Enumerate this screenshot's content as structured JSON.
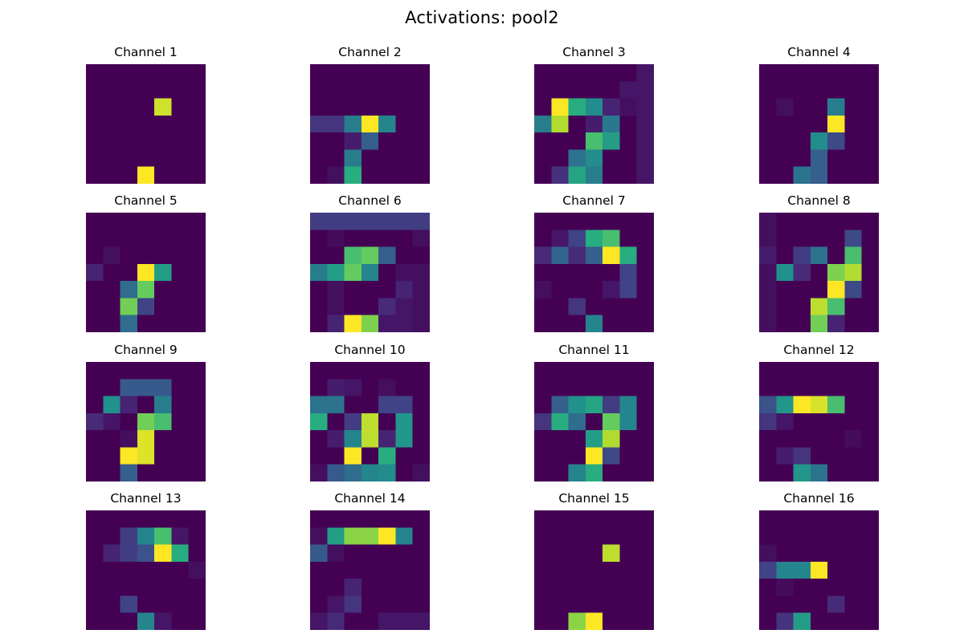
{
  "chart_data": {
    "type": "heatmap",
    "title": "Activations: pool2",
    "colormap": "viridis",
    "value_range": [
      0,
      1
    ],
    "axes_visible": false,
    "grid": false,
    "colormap_stops": [
      "#440154",
      "#472d7b",
      "#3b528b",
      "#2c728e",
      "#21918c",
      "#28ae80",
      "#5ec962",
      "#addc30",
      "#fde725"
    ],
    "panels": [
      {
        "title": "Channel 1",
        "values": [
          [
            0,
            0,
            0,
            0,
            0,
            0,
            0
          ],
          [
            0,
            0,
            0,
            0,
            0,
            0,
            0
          ],
          [
            0,
            0,
            0,
            0,
            0.93,
            0,
            0
          ],
          [
            0,
            0,
            0,
            0,
            0,
            0,
            0
          ],
          [
            0,
            0,
            0,
            0,
            0,
            0,
            0
          ],
          [
            0,
            0,
            0,
            0,
            0,
            0,
            0
          ],
          [
            0,
            0,
            0,
            1,
            0,
            0,
            0
          ]
        ]
      },
      {
        "title": "Channel 2",
        "values": [
          [
            0,
            0,
            0,
            0,
            0,
            0,
            0
          ],
          [
            0,
            0,
            0,
            0,
            0,
            0,
            0
          ],
          [
            0,
            0,
            0,
            0,
            0,
            0,
            0
          ],
          [
            0.15,
            0.15,
            0.42,
            1,
            0.45,
            0,
            0
          ],
          [
            0,
            0,
            0.08,
            0.3,
            0,
            0,
            0
          ],
          [
            0,
            0,
            0.42,
            0,
            0,
            0,
            0
          ],
          [
            0,
            0.04,
            0.62,
            0,
            0,
            0,
            0
          ]
        ]
      },
      {
        "title": "Channel 3",
        "values": [
          [
            0,
            0,
            0,
            0,
            0,
            0,
            0.06
          ],
          [
            0,
            0,
            0,
            0,
            0,
            0.06,
            0.06
          ],
          [
            0,
            1,
            0.62,
            0.48,
            0.1,
            0.04,
            0.06
          ],
          [
            0.42,
            0.88,
            0,
            0.08,
            0.4,
            0,
            0.06
          ],
          [
            0,
            0,
            0,
            0.7,
            0.55,
            0,
            0.06
          ],
          [
            0,
            0,
            0.38,
            0.48,
            0,
            0,
            0.06
          ],
          [
            0,
            0.14,
            0.58,
            0.42,
            0,
            0,
            0.06
          ]
        ]
      },
      {
        "title": "Channel 4",
        "values": [
          [
            0,
            0,
            0,
            0,
            0,
            0,
            0
          ],
          [
            0,
            0,
            0,
            0,
            0,
            0,
            0
          ],
          [
            0,
            0.04,
            0,
            0,
            0.42,
            0,
            0
          ],
          [
            0,
            0,
            0,
            0,
            1,
            0,
            0
          ],
          [
            0,
            0,
            0,
            0.48,
            0.22,
            0,
            0
          ],
          [
            0,
            0,
            0,
            0.3,
            0,
            0,
            0
          ],
          [
            0,
            0,
            0.38,
            0.3,
            0,
            0,
            0
          ]
        ]
      },
      {
        "title": "Channel 5",
        "values": [
          [
            0,
            0,
            0,
            0,
            0,
            0,
            0
          ],
          [
            0,
            0,
            0,
            0,
            0,
            0,
            0
          ],
          [
            0,
            0.04,
            0,
            0,
            0,
            0,
            0
          ],
          [
            0.1,
            0,
            0,
            1,
            0.55,
            0,
            0
          ],
          [
            0,
            0,
            0.35,
            0.76,
            0,
            0,
            0
          ],
          [
            0,
            0,
            0.78,
            0.2,
            0,
            0,
            0
          ],
          [
            0,
            0,
            0.35,
            0,
            0,
            0,
            0
          ]
        ]
      },
      {
        "title": "Channel 6",
        "values": [
          [
            0.18,
            0.18,
            0.18,
            0.18,
            0.18,
            0.18,
            0.18
          ],
          [
            0,
            0.03,
            0,
            0,
            0,
            0,
            0.04
          ],
          [
            0,
            0,
            0.7,
            0.76,
            0.3,
            0,
            0
          ],
          [
            0.42,
            0.55,
            0.76,
            0.45,
            0,
            0.04,
            0.04
          ],
          [
            0,
            0.04,
            0,
            0,
            0,
            0.1,
            0.04
          ],
          [
            0,
            0.04,
            0,
            0,
            0.12,
            0.06,
            0.04
          ],
          [
            0,
            0.1,
            1,
            0.8,
            0.06,
            0.06,
            0.04
          ]
        ]
      },
      {
        "title": "Channel 7",
        "values": [
          [
            0,
            0,
            0,
            0,
            0,
            0,
            0
          ],
          [
            0,
            0.06,
            0.2,
            0.62,
            0.7,
            0,
            0
          ],
          [
            0.12,
            0.32,
            0.12,
            0.3,
            1,
            0.62,
            0
          ],
          [
            0,
            0,
            0,
            0,
            0,
            0.2,
            0
          ],
          [
            0.04,
            0,
            0,
            0,
            0.06,
            0.2,
            0
          ],
          [
            0,
            0,
            0.15,
            0,
            0,
            0,
            0
          ],
          [
            0,
            0,
            0,
            0.45,
            0,
            0,
            0
          ]
        ]
      },
      {
        "title": "Channel 8",
        "values": [
          [
            0.04,
            0,
            0,
            0,
            0,
            0,
            0
          ],
          [
            0.04,
            0,
            0,
            0,
            0,
            0.22,
            0
          ],
          [
            0.08,
            0,
            0.18,
            0.38,
            0,
            0.7,
            0
          ],
          [
            0.04,
            0.5,
            0.12,
            0,
            0.8,
            0.88,
            0
          ],
          [
            0.04,
            0,
            0,
            0,
            1,
            0.22,
            0
          ],
          [
            0.04,
            0,
            0,
            0.9,
            0.7,
            0,
            0
          ],
          [
            0.04,
            0,
            0,
            0.78,
            0.1,
            0,
            0
          ]
        ]
      },
      {
        "title": "Channel 9",
        "values": [
          [
            0,
            0,
            0,
            0,
            0,
            0,
            0
          ],
          [
            0,
            0,
            0.28,
            0.28,
            0.28,
            0,
            0
          ],
          [
            0,
            0.5,
            0.1,
            0,
            0.42,
            0,
            0
          ],
          [
            0.12,
            0.06,
            0,
            0.78,
            0.7,
            0,
            0
          ],
          [
            0,
            0,
            0.04,
            0.95,
            0,
            0,
            0
          ],
          [
            0,
            0,
            1,
            0.95,
            0,
            0,
            0
          ],
          [
            0,
            0,
            0.3,
            0,
            0,
            0,
            0
          ]
        ]
      },
      {
        "title": "Channel 10",
        "values": [
          [
            0,
            0,
            0,
            0,
            0,
            0,
            0
          ],
          [
            0,
            0.08,
            0.06,
            0,
            0.04,
            0,
            0
          ],
          [
            0.38,
            0.38,
            0,
            0,
            0.2,
            0.2,
            0
          ],
          [
            0.62,
            0,
            0.18,
            0.9,
            0,
            0.52,
            0
          ],
          [
            0,
            0.08,
            0.45,
            0.9,
            0.1,
            0.52,
            0
          ],
          [
            0,
            0,
            1,
            0,
            0.62,
            0,
            0
          ],
          [
            0.04,
            0.28,
            0.35,
            0.45,
            0.48,
            0,
            0.04
          ]
        ]
      },
      {
        "title": "Channel 11",
        "values": [
          [
            0,
            0,
            0,
            0,
            0,
            0,
            0
          ],
          [
            0,
            0,
            0,
            0,
            0,
            0,
            0
          ],
          [
            0,
            0.3,
            0.5,
            0.58,
            0.18,
            0.45,
            0
          ],
          [
            0.15,
            0.62,
            0.35,
            0,
            0.76,
            0.45,
            0
          ],
          [
            0,
            0,
            0,
            0.55,
            0.88,
            0,
            0
          ],
          [
            0,
            0,
            0,
            1,
            0.22,
            0,
            0
          ],
          [
            0,
            0,
            0.45,
            0.62,
            0,
            0,
            0
          ]
        ]
      },
      {
        "title": "Channel 12",
        "values": [
          [
            0,
            0,
            0,
            0,
            0,
            0,
            0
          ],
          [
            0,
            0,
            0,
            0,
            0,
            0,
            0
          ],
          [
            0.25,
            0.52,
            1,
            0.94,
            0.7,
            0,
            0
          ],
          [
            0.15,
            0.06,
            0,
            0,
            0,
            0,
            0
          ],
          [
            0,
            0,
            0,
            0,
            0,
            0.03,
            0
          ],
          [
            0,
            0.08,
            0.15,
            0,
            0,
            0,
            0
          ],
          [
            0,
            0,
            0.52,
            0.38,
            0,
            0,
            0
          ]
        ]
      },
      {
        "title": "Channel 13",
        "values": [
          [
            0,
            0,
            0,
            0,
            0,
            0,
            0
          ],
          [
            0,
            0,
            0.18,
            0.45,
            0.7,
            0.06,
            0
          ],
          [
            0,
            0.1,
            0.18,
            0.25,
            1,
            0.62,
            0
          ],
          [
            0,
            0,
            0,
            0,
            0,
            0,
            0.04
          ],
          [
            0,
            0,
            0,
            0,
            0,
            0,
            0
          ],
          [
            0,
            0,
            0.2,
            0,
            0,
            0,
            0
          ],
          [
            0,
            0,
            0,
            0.45,
            0.06,
            0,
            0
          ]
        ]
      },
      {
        "title": "Channel 14",
        "values": [
          [
            0,
            0,
            0,
            0,
            0,
            0,
            0
          ],
          [
            0.04,
            0.55,
            0.82,
            0.82,
            1,
            0.45,
            0
          ],
          [
            0.28,
            0.04,
            0,
            0,
            0,
            0,
            0
          ],
          [
            0,
            0,
            0,
            0,
            0,
            0,
            0
          ],
          [
            0,
            0,
            0.1,
            0,
            0,
            0,
            0
          ],
          [
            0,
            0.06,
            0.15,
            0,
            0,
            0,
            0
          ],
          [
            0.06,
            0.12,
            0,
            0,
            0.06,
            0.06,
            0.06
          ]
        ]
      },
      {
        "title": "Channel 15",
        "values": [
          [
            0,
            0,
            0,
            0,
            0,
            0,
            0
          ],
          [
            0,
            0,
            0,
            0,
            0,
            0,
            0
          ],
          [
            0,
            0,
            0,
            0,
            0.9,
            0,
            0
          ],
          [
            0,
            0,
            0,
            0,
            0,
            0,
            0
          ],
          [
            0,
            0,
            0,
            0,
            0,
            0,
            0
          ],
          [
            0,
            0,
            0,
            0,
            0,
            0,
            0
          ],
          [
            0,
            0,
            0.82,
            1,
            0,
            0,
            0
          ]
        ]
      },
      {
        "title": "Channel 16",
        "values": [
          [
            0,
            0,
            0,
            0,
            0,
            0,
            0
          ],
          [
            0,
            0,
            0,
            0,
            0,
            0,
            0
          ],
          [
            0.04,
            0,
            0,
            0,
            0,
            0,
            0
          ],
          [
            0.2,
            0.45,
            0.45,
            1,
            0,
            0,
            0
          ],
          [
            0,
            0.03,
            0,
            0,
            0,
            0,
            0
          ],
          [
            0,
            0,
            0,
            0,
            0.12,
            0,
            0
          ],
          [
            0,
            0.15,
            0.55,
            0,
            0,
            0,
            0
          ]
        ]
      }
    ]
  }
}
